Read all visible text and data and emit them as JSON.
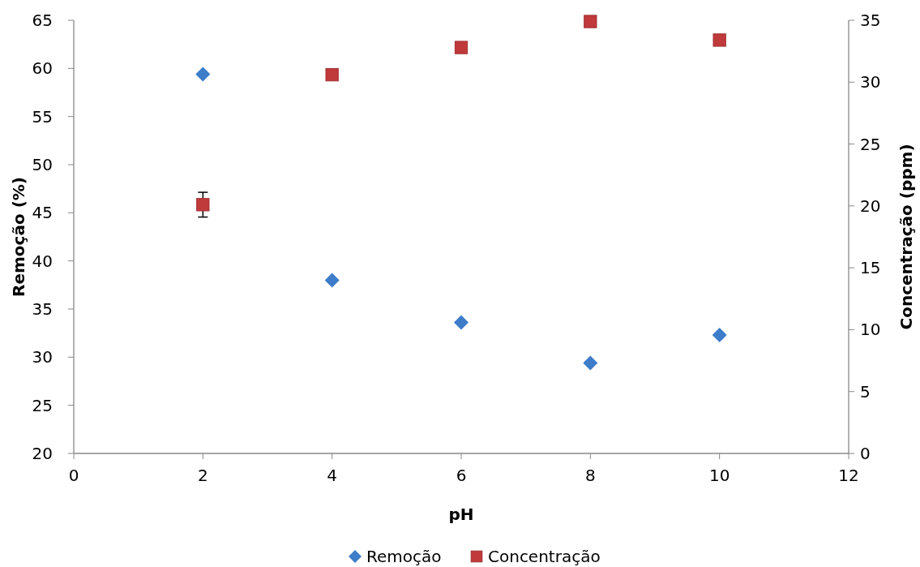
{
  "chart_data": {
    "type": "scatter",
    "xlabel": "pH",
    "ylabel": "Remoção (%)",
    "y2label": "Concentração (ppm)",
    "x": [
      2,
      4,
      6,
      8,
      10
    ],
    "xlim": [
      0,
      12
    ],
    "xticks": [
      0,
      2,
      4,
      6,
      8,
      10,
      12
    ],
    "ylim": [
      20,
      65
    ],
    "yticks": [
      20,
      25,
      30,
      35,
      40,
      45,
      50,
      55,
      60,
      65
    ],
    "y2lim": [
      0,
      35
    ],
    "y2ticks": [
      0,
      5,
      10,
      15,
      20,
      25,
      30,
      35
    ],
    "grid": false,
    "legend": "bottom",
    "series": [
      {
        "name": "Remoção",
        "color": "#3d7cc9",
        "marker": "diamond",
        "values": [
          59.4,
          38.0,
          33.6,
          29.4,
          32.3
        ]
      },
      {
        "name": "Concentração",
        "color": "#c0393b",
        "marker": "square",
        "axis": "y2",
        "values": [
          20.1,
          30.6,
          32.8,
          34.9,
          33.4
        ],
        "errors": [
          1,
          null,
          null,
          null,
          null
        ]
      }
    ]
  }
}
